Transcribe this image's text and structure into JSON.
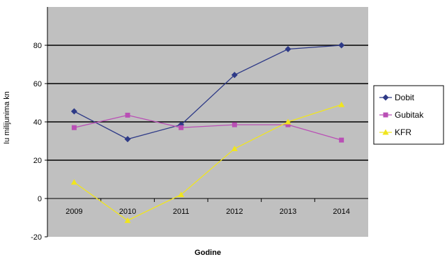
{
  "chart_data": {
    "type": "line",
    "title": "",
    "xlabel": "Godine",
    "ylabel": "Iu milijunima kn",
    "categories": [
      "2009",
      "2010",
      "2011",
      "2012",
      "2013",
      "2014"
    ],
    "ylim": [
      -20,
      100
    ],
    "yticks": [
      -20,
      0,
      20,
      40,
      60,
      80
    ],
    "grid": true,
    "legend": "right",
    "series": [
      {
        "name": "Dobit",
        "color": "#2e3a87",
        "marker": "diamond",
        "values": [
          45.5,
          31,
          38.5,
          64.5,
          78,
          80
        ]
      },
      {
        "name": "Gubitak",
        "color": "#b94fb5",
        "marker": "square",
        "values": [
          37,
          43.5,
          37,
          38.5,
          38.5,
          30.5
        ]
      },
      {
        "name": "KFR",
        "color": "#f0e51e",
        "marker": "triangle",
        "values": [
          8.5,
          -11.5,
          2,
          26,
          40,
          49
        ]
      }
    ]
  },
  "plot_background": "#c0c0c0"
}
